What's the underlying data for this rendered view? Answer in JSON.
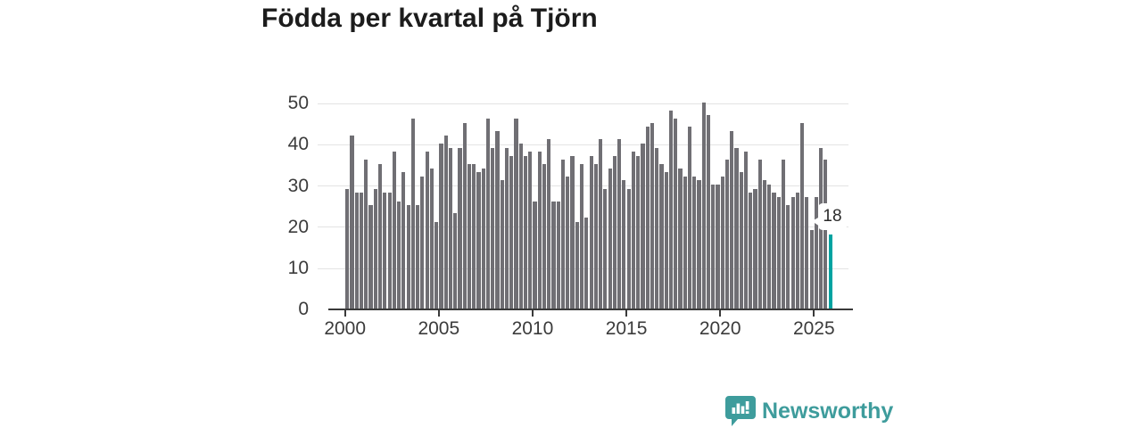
{
  "title": "Födda per kvartal på Tjörn",
  "chart_data": {
    "type": "bar",
    "title": "Födda per kvartal på Tjörn",
    "x_unit": "quarter",
    "x_range": "2000 Q1 - 2025 Q4",
    "x_tick_labels": [
      "2000",
      "2005",
      "2010",
      "2015",
      "2020",
      "2025"
    ],
    "x_tick_years": [
      2000,
      2005,
      2010,
      2015,
      2020,
      2025
    ],
    "y_tick_labels": [
      "0",
      "10",
      "20",
      "30",
      "40",
      "50"
    ],
    "y_ticks": [
      0,
      10,
      20,
      30,
      40,
      50
    ],
    "ylim": [
      0,
      50
    ],
    "grid": "horizontal",
    "legend": "none",
    "values": [
      29,
      42,
      28,
      28,
      36,
      25,
      29,
      35,
      28,
      28,
      38,
      26,
      33,
      25,
      46,
      25,
      32,
      38,
      34,
      21,
      40,
      42,
      39,
      23,
      39,
      45,
      35,
      35,
      33,
      34,
      46,
      39,
      43,
      31,
      39,
      37,
      46,
      40,
      37,
      38,
      26,
      38,
      35,
      41,
      26,
      26,
      36,
      32,
      37,
      21,
      35,
      22,
      37,
      35,
      41,
      29,
      34,
      37,
      41,
      31,
      29,
      38,
      37,
      40,
      44,
      45,
      39,
      35,
      33,
      48,
      46,
      34,
      32,
      44,
      32,
      31,
      50,
      47,
      30,
      30,
      32,
      36,
      43,
      39,
      33,
      38,
      28,
      29,
      36,
      31,
      30,
      28,
      27,
      36,
      25,
      27,
      28,
      45,
      27,
      19,
      27,
      39,
      36,
      18
    ],
    "highlight_last_bar": true,
    "last_value_label": "18"
  },
  "callout": {
    "label": "18"
  },
  "logo": {
    "text": "Newsworthy"
  },
  "colors": {
    "bar": "#706f74",
    "highlight": "#00a3a1",
    "grid": "#e3e3e3",
    "axis": "#3a3a3a",
    "title": "#1c1c1c",
    "tick_label": "#3b3b3b",
    "logo": "#3e9c9c",
    "callout_bg": "#ffffff",
    "callout_text": "#2a2a2a"
  }
}
